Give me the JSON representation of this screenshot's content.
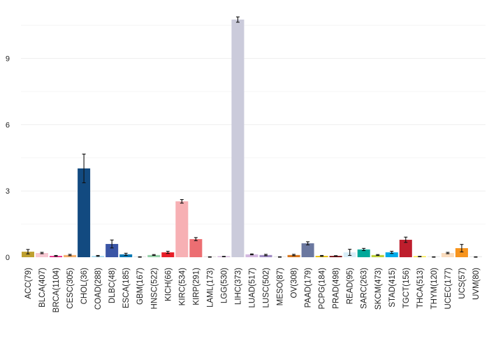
{
  "chart_data": {
    "type": "bar",
    "title": "",
    "xlabel": "",
    "ylabel": "",
    "ylim": [
      0,
      11.2
    ],
    "yticks": [
      "0",
      "3",
      "6",
      "9"
    ],
    "grid": true,
    "categories": [
      "ACC(79)",
      "BLCA(407)",
      "BRCA(1104)",
      "CESC(305)",
      "CHOL(36)",
      "COAD(288)",
      "DLBC(48)",
      "ESCA(185)",
      "GBM(167)",
      "HNSC(522)",
      "KICH(66)",
      "KIRC(534)",
      "KIRP(291)",
      "LAML(173)",
      "LGG(530)",
      "LIHC(373)",
      "LUAD(517)",
      "LUSC(502)",
      "MESO(87)",
      "OV(308)",
      "PAAD(179)",
      "PCPG(184)",
      "PRAD(498)",
      "READ(95)",
      "SARC(263)",
      "SKCM(473)",
      "STAD(415)",
      "TGCT(156)",
      "THCA(513)",
      "THYM(120)",
      "UCEC(177)",
      "UCS(57)",
      "UVM(80)"
    ],
    "values": [
      0.25,
      0.19,
      0.06,
      0.1,
      4.02,
      0.06,
      0.6,
      0.13,
      0.01,
      0.1,
      0.22,
      2.53,
      0.82,
      0.01,
      0.03,
      10.76,
      0.13,
      0.1,
      0.01,
      0.1,
      0.63,
      0.06,
      0.06,
      0.22,
      0.35,
      0.1,
      0.22,
      0.79,
      0.03,
      0.01,
      0.19,
      0.41,
      0.01
    ],
    "errors": [
      0.1,
      0.03,
      0.02,
      0.03,
      0.65,
      0.02,
      0.18,
      0.05,
      0.01,
      0.02,
      0.05,
      0.08,
      0.07,
      0.01,
      0.01,
      0.12,
      0.02,
      0.03,
      0.01,
      0.03,
      0.07,
      0.02,
      0.01,
      0.14,
      0.05,
      0.02,
      0.05,
      0.12,
      0.01,
      0.01,
      0.03,
      0.17,
      0.01
    ],
    "colors": [
      "#bfa030",
      "#f7c8d2",
      "#e8308a",
      "#f5b06e",
      "#124a80",
      "#a8dcf0",
      "#3a55a5",
      "#0a78b4",
      "#ececec",
      "#96d0a8",
      "#e81e28",
      "#f7b0b4",
      "#ec6e72",
      "#ece8e8",
      "#d5b7db",
      "#cbcbdb",
      "#d4b8e0",
      "#a08cc4",
      "#ececec",
      "#d87820",
      "#6b78a0",
      "#e8c010",
      "#7a1418",
      "#d8eef8",
      "#00a89a",
      "#bcd03a",
      "#00aae8",
      "#be1e2d",
      "#f8e840",
      "#ececec",
      "#fadcbe",
      "#f7941d",
      "#ececec"
    ]
  }
}
